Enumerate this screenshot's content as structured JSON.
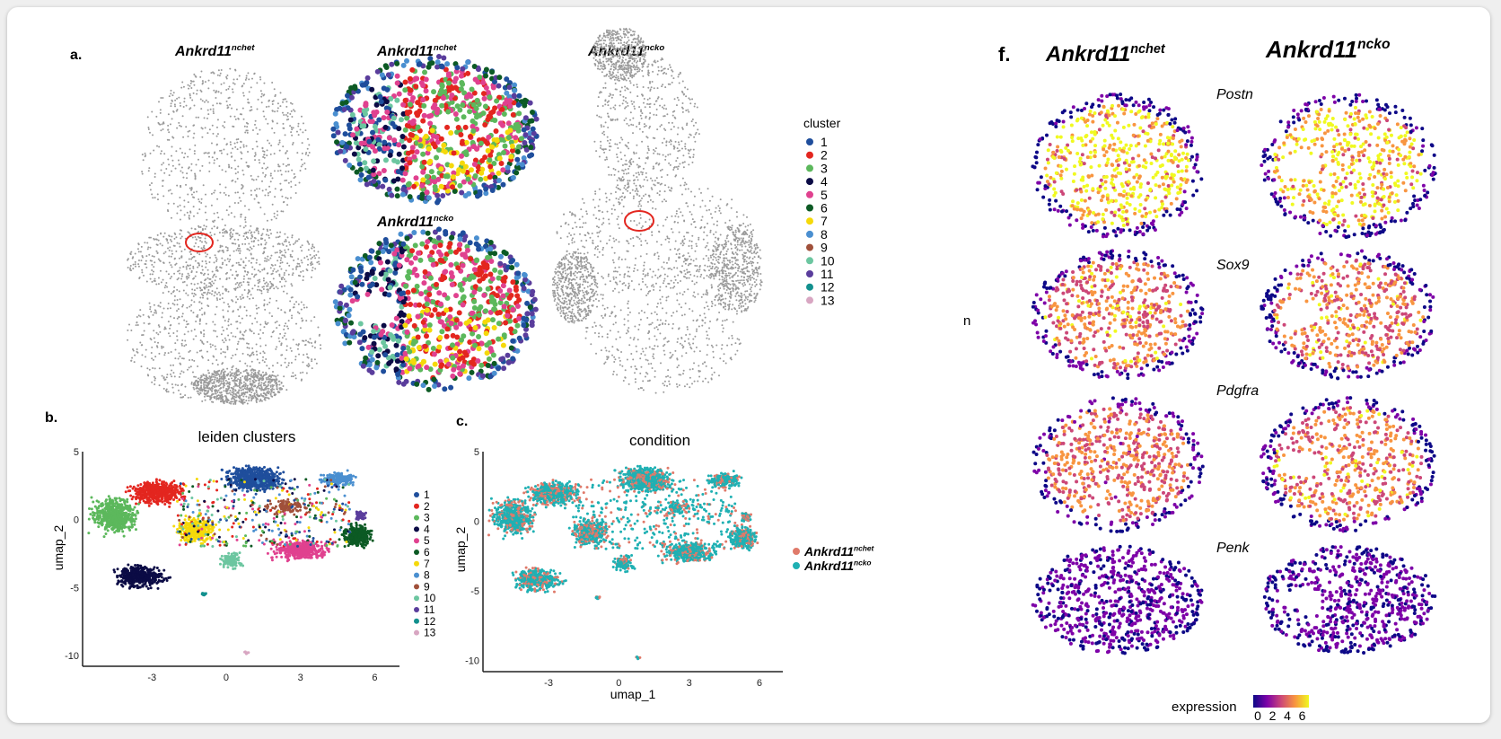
{
  "panel_a": {
    "label": "a.",
    "titles": [
      {
        "gene": "Ankrd11",
        "sup": "nchet"
      },
      {
        "gene": "Ankrd11",
        "sup": "nchet"
      },
      {
        "gene": "Ankrd11",
        "sup": "ncko"
      },
      {
        "gene": "Ankrd11",
        "sup": "ncko"
      }
    ],
    "legend_title": "cluster",
    "tissue_color": "#9a9a9a"
  },
  "clusters": {
    "labels": [
      "1",
      "2",
      "3",
      "4",
      "5",
      "6",
      "7",
      "8",
      "9",
      "10",
      "11",
      "12",
      "13"
    ],
    "colors": [
      "#1f4e9c",
      "#e3261f",
      "#5cb85c",
      "#0b0b45",
      "#e0418f",
      "#0c5a24",
      "#f5d90a",
      "#4a8fd0",
      "#a0503a",
      "#6cc6a0",
      "#5a3d9c",
      "#12908e",
      "#d8a6c2"
    ]
  },
  "stray_text": "n",
  "chart_data": [
    {
      "type": "scatter",
      "panel": "b.",
      "title": "leiden clusters",
      "xlabel": "",
      "ylabel": "umap_2",
      "xticks": [
        "-3",
        "0",
        "3",
        "6"
      ],
      "yticks": [
        "5",
        "0",
        "-5",
        "-10"
      ],
      "xlim": [
        -5.8,
        7
      ],
      "ylim": [
        -10.8,
        5
      ],
      "color_by": "cluster",
      "legend": [
        "1",
        "2",
        "3",
        "4",
        "5",
        "6",
        "7",
        "8",
        "9",
        "10",
        "11",
        "12",
        "13"
      ],
      "legend_placement": "right",
      "grid": false
    },
    {
      "type": "scatter",
      "panel": "c.",
      "title": "condition",
      "xlabel": "umap_1",
      "ylabel": "umap_2",
      "xticks": [
        "-3",
        "0",
        "3",
        "6"
      ],
      "yticks": [
        "5",
        "0",
        "-5",
        "-10"
      ],
      "xlim": [
        -5.8,
        7
      ],
      "ylim": [
        -10.8,
        5
      ],
      "color_by": "condition",
      "legend": [
        {
          "gene": "Ankrd11",
          "sup": "nchet",
          "color": "#e07a6a"
        },
        {
          "gene": "Ankrd11",
          "sup": "ncko",
          "color": "#1fb0b3"
        }
      ],
      "legend_placement": "right",
      "grid": false
    },
    {
      "type": "scatter",
      "panel": "f.",
      "columns": [
        {
          "gene": "Ankrd11",
          "sup": "nchet"
        },
        {
          "gene": "Ankrd11",
          "sup": "ncko"
        }
      ],
      "rows": [
        "Postn",
        "Sox9",
        "Pdgfra",
        "Penk"
      ],
      "colorbar": {
        "title": "expression",
        "ticks": [
          "0",
          "2",
          "4",
          "6"
        ],
        "range": [
          0,
          6.5
        ],
        "colors": [
          "#0d0887",
          "#7e03a8",
          "#cc4778",
          "#f89540",
          "#f0f921"
        ]
      },
      "grid": false
    }
  ]
}
